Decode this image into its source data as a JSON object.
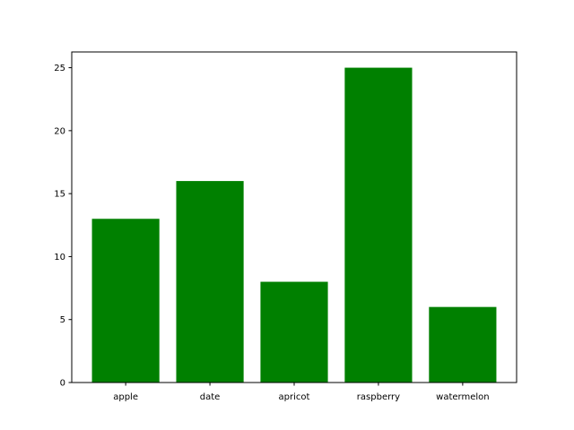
{
  "chart_data": {
    "type": "bar",
    "title": "",
    "xlabel": "",
    "ylabel": "",
    "categories": [
      "apple",
      "date",
      "apricot",
      "raspberry",
      "watermelon"
    ],
    "values": [
      13,
      16,
      8,
      25,
      6
    ],
    "ylim": [
      0,
      26.25
    ],
    "xlim": [
      -0.64,
      4.64
    ],
    "yticks": [
      0,
      5,
      10,
      15,
      20,
      25
    ],
    "bar_color": "#008000",
    "grid": false
  }
}
